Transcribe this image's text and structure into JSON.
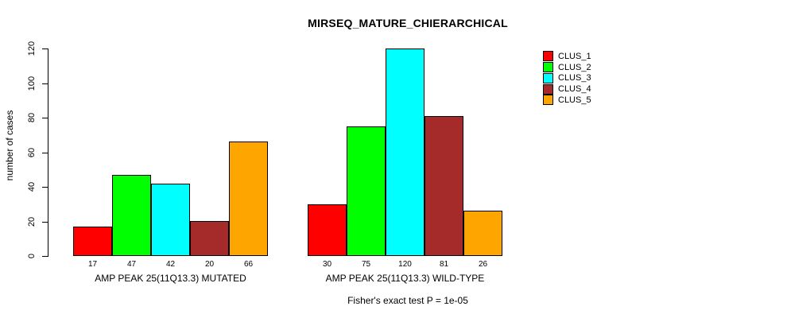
{
  "chart_data": {
    "type": "bar",
    "title": "MIRSEQ_MATURE_CHIERARCHICAL",
    "xlabel": "",
    "ylabel": "number of cases",
    "ylim": [
      0,
      120
    ],
    "yticks": [
      0,
      20,
      40,
      60,
      80,
      100,
      120
    ],
    "grid": false,
    "legend_position": "right",
    "annotation": "Fisher's exact test P = 1e-05",
    "series": [
      {
        "name": "CLUS_1",
        "color": "#FF0000"
      },
      {
        "name": "CLUS_2",
        "color": "#00FF00"
      },
      {
        "name": "CLUS_3",
        "color": "#00FFFF"
      },
      {
        "name": "CLUS_4",
        "color": "#A52A2A"
      },
      {
        "name": "CLUS_5",
        "color": "#FFA500"
      }
    ],
    "groups": [
      {
        "label": "AMP PEAK 25(11Q13.3) MUTATED",
        "values": [
          17,
          47,
          42,
          20,
          66
        ]
      },
      {
        "label": "AMP PEAK 25(11Q13.3) WILD-TYPE",
        "values": [
          30,
          75,
          120,
          81,
          26
        ]
      }
    ]
  }
}
